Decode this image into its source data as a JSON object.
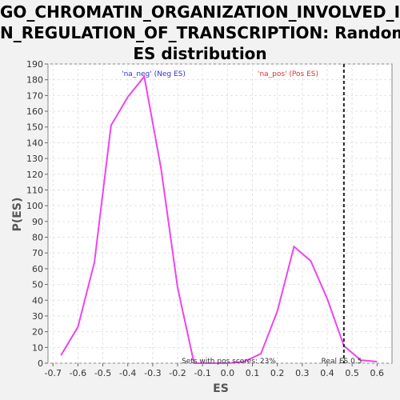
{
  "title_lines": [
    "GO_CHROMATIN_ORGANIZATION_INVOLVED_I",
    "N_REGULATION_OF_TRANSCRIPTION: Random",
    "ES distribution"
  ],
  "colors": {
    "curve": "#ee44ee",
    "neg_label": "#3333cc",
    "pos_label": "#dd3333",
    "plot_bg": "#ffffff",
    "grid": "#e3e3e3",
    "real_es_line": "#222222"
  },
  "chart_data": {
    "type": "line",
    "title": "GO_CHROMATIN_ORGANIZATION_INVOLVED_IN_REGULATION_OF_TRANSCRIPTION: Random ES distribution",
    "xlabel": "ES",
    "ylabel": "P(ES)",
    "xlim": [
      -0.72,
      0.66
    ],
    "ylim": [
      0,
      190
    ],
    "xticks": [
      -0.7,
      -0.6,
      -0.5,
      -0.4,
      -0.3,
      -0.2,
      -0.1,
      0.0,
      0.1,
      0.2,
      0.3,
      0.4,
      0.5,
      0.6
    ],
    "xtick_labels": [
      "-0.7",
      "-0.6",
      "-0.5",
      "-0.4",
      "-0.3",
      "-0.2",
      "-0.1",
      "0.0",
      "0.1",
      "0.2",
      "0.3",
      "0.4",
      "0.5",
      "0.6"
    ],
    "yticks": [
      0,
      10,
      20,
      30,
      40,
      50,
      60,
      70,
      80,
      90,
      100,
      110,
      120,
      130,
      140,
      150,
      160,
      170,
      180,
      190
    ],
    "grid": true,
    "series": [
      {
        "x": [
          -0.668,
          -0.6,
          -0.534,
          -0.467,
          -0.4,
          -0.334,
          -0.267,
          -0.2,
          -0.134,
          -0.067,
          0.0,
          0.067,
          0.134,
          0.2,
          0.267,
          0.334,
          0.4,
          0.467,
          0.534,
          0.6
        ],
        "y": [
          5,
          23,
          64,
          151,
          169,
          182,
          124,
          48,
          0,
          0,
          0,
          1,
          6,
          33,
          74,
          65,
          41,
          11,
          2,
          1
        ]
      }
    ],
    "real_es": 0.467,
    "annotations": {
      "neg": "'na_neg' (Neg ES)",
      "pos": "'na_pos' (Pos ES)",
      "pos_scores": "Sets with pos scores: 23%",
      "real_es": "Real ES 0.5"
    }
  }
}
